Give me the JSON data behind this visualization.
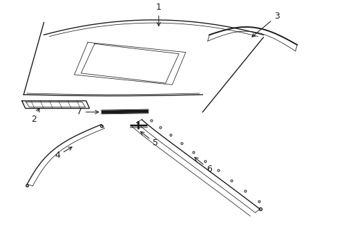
{
  "bg_color": "#ffffff",
  "line_color": "#1a1a1a",
  "label_color": "#000000",
  "font_size": 9,
  "lw_main": 1.0,
  "lw_thin": 0.55,
  "lw_thick": 1.4
}
